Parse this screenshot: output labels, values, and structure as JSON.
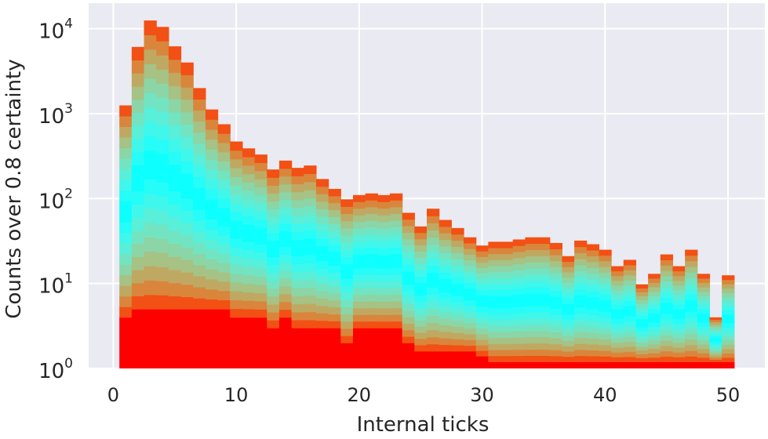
{
  "chart_data": {
    "type": "bar",
    "style": "stacked histogram, one bar per internal tick, layers colored with a rainbow colormap (violet at bottom to red at top)",
    "xlabel": "Internal ticks",
    "ylabel": "Counts over 0.8 certainty",
    "yscale": "log",
    "xlim": [
      -2,
      53
    ],
    "ylim": [
      1,
      20000
    ],
    "x_ticks": [
      0,
      10,
      20,
      30,
      40,
      50
    ],
    "x_tick_labels": [
      "0",
      "10",
      "20",
      "30",
      "40",
      "50"
    ],
    "y_ticks": [
      1,
      10,
      100,
      1000,
      10000
    ],
    "y_tick_labels": [
      {
        "base": "10",
        "exp": "0"
      },
      {
        "base": "10",
        "exp": "1"
      },
      {
        "base": "10",
        "exp": "2"
      },
      {
        "base": "10",
        "exp": "3"
      },
      {
        "base": "10",
        "exp": "4"
      }
    ],
    "grid": true,
    "background": "#eaeaf2",
    "grid_color": "#ffffff",
    "colormap": "rainbow",
    "num_layers": 20,
    "bin_width": 1,
    "x": [
      1,
      2,
      3,
      4,
      5,
      6,
      7,
      8,
      9,
      10,
      11,
      12,
      13,
      14,
      15,
      16,
      17,
      18,
      19,
      20,
      21,
      22,
      23,
      24,
      25,
      26,
      27,
      28,
      29,
      30,
      31,
      32,
      33,
      34,
      35,
      36,
      37,
      38,
      39,
      40,
      41,
      42,
      43,
      44,
      45,
      46,
      47,
      48,
      49,
      50
    ],
    "values": [
      1250,
      6100,
      12500,
      10500,
      6200,
      4000,
      2000,
      1120,
      750,
      470,
      390,
      330,
      220,
      280,
      230,
      245,
      170,
      130,
      98,
      110,
      115,
      110,
      115,
      68,
      47,
      76,
      56,
      45,
      35,
      28,
      31,
      31,
      33,
      35,
      35,
      30,
      21,
      32,
      29,
      25,
      16,
      19,
      9.8,
      13,
      22,
      16,
      25,
      13,
      4,
      12.5
    ],
    "base_values": [
      4,
      5,
      5,
      5,
      5,
      5,
      5,
      5,
      5,
      4,
      4,
      4,
      3,
      4,
      3,
      3,
      3,
      3,
      2,
      3,
      3,
      3,
      3,
      2,
      1.6,
      1.6,
      1.6,
      1.6,
      1.6,
      1.4,
      1.2,
      1.2,
      1.2,
      1.2,
      1.2,
      1.2,
      1.2,
      1.2,
      1.2,
      1.2,
      1.2,
      1.2,
      1.2,
      1.2,
      1.2,
      1.2,
      1.2,
      1.2,
      1.2,
      1.2
    ]
  }
}
